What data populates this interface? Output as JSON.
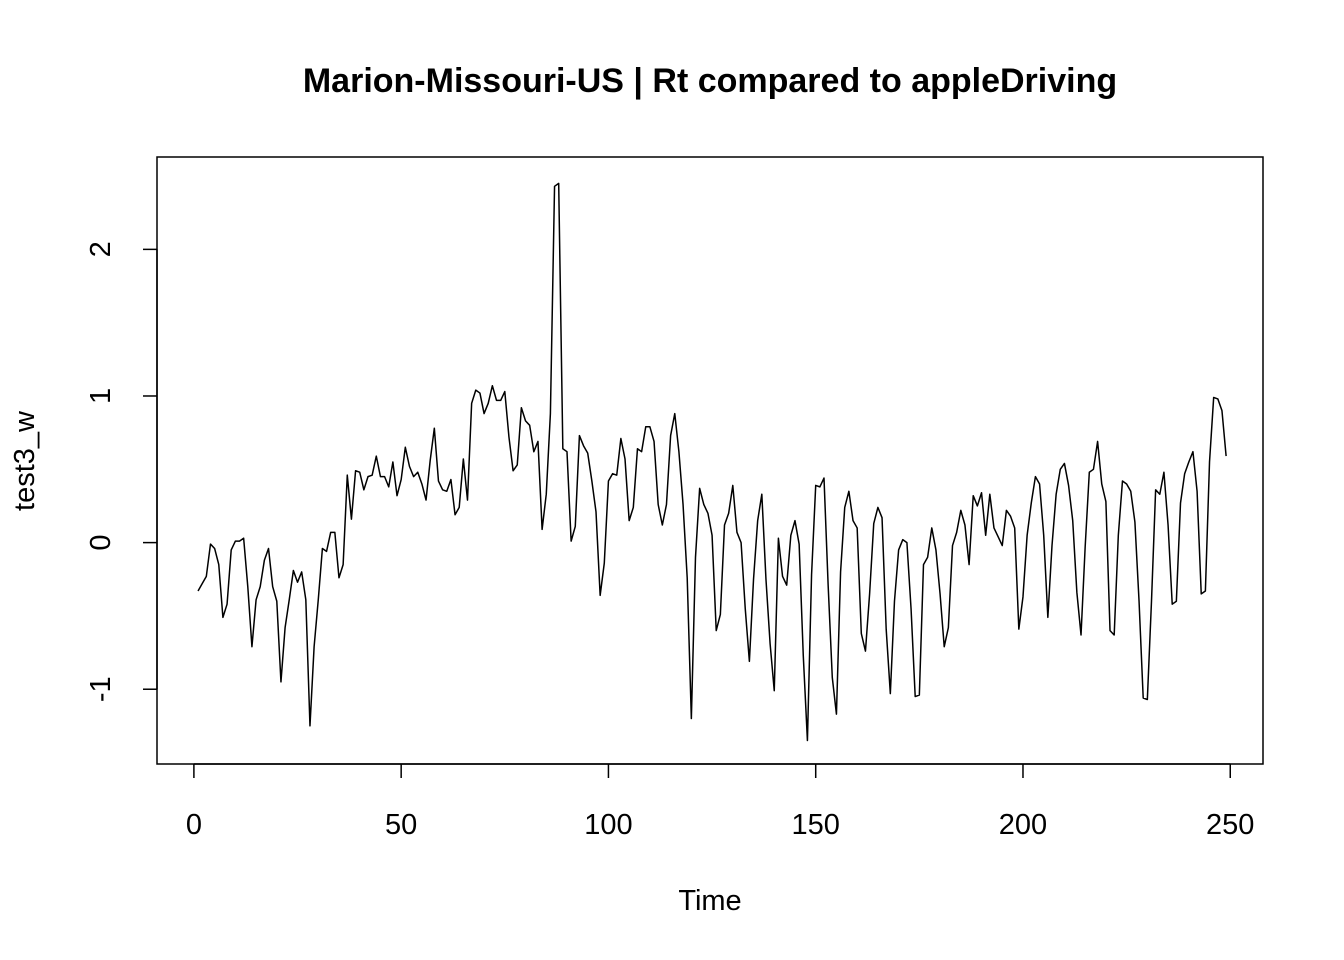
{
  "chart_data": {
    "type": "line",
    "title": "Marion-Missouri-US | Rt compared to appleDriving",
    "xlabel": "Time",
    "ylabel": "test3_w",
    "xlim": [
      -8.9,
      257.9
    ],
    "ylim": [
      -1.51,
      2.63
    ],
    "x_ticks": [
      0,
      50,
      100,
      150,
      200,
      250
    ],
    "x_tick_labels": [
      "0",
      "50",
      "100",
      "150",
      "200",
      "250"
    ],
    "y_ticks": [
      -1,
      0,
      1,
      2
    ],
    "y_tick_labels": [
      "-1",
      "0",
      "1",
      "2"
    ],
    "grid": false,
    "line_color": "#000000",
    "series": [
      {
        "x_start": 1,
        "x_step": 1,
        "values": [
          -0.33,
          -0.28,
          -0.23,
          -0.01,
          -0.04,
          -0.15,
          -0.51,
          -0.42,
          -0.05,
          0.01,
          0.01,
          0.03,
          -0.3,
          -0.71,
          -0.39,
          -0.3,
          -0.12,
          -0.04,
          -0.3,
          -0.4,
          -0.95,
          -0.58,
          -0.39,
          -0.19,
          -0.27,
          -0.2,
          -0.39,
          -1.25,
          -0.71,
          -0.39,
          -0.04,
          -0.06,
          0.07,
          0.07,
          -0.24,
          -0.15,
          0.46,
          0.16,
          0.49,
          0.48,
          0.36,
          0.45,
          0.46,
          0.59,
          0.45,
          0.45,
          0.38,
          0.55,
          0.32,
          0.43,
          0.65,
          0.52,
          0.45,
          0.48,
          0.4,
          0.29,
          0.56,
          0.78,
          0.42,
          0.36,
          0.35,
          0.43,
          0.19,
          0.24,
          0.57,
          0.29,
          0.95,
          1.04,
          1.02,
          0.88,
          0.95,
          1.07,
          0.97,
          0.97,
          1.03,
          0.72,
          0.49,
          0.53,
          0.92,
          0.83,
          0.8,
          0.62,
          0.69,
          0.09,
          0.33,
          0.88,
          2.43,
          2.45,
          0.64,
          0.62,
          0.01,
          0.11,
          0.73,
          0.66,
          0.61,
          0.42,
          0.21,
          -0.36,
          -0.14,
          0.42,
          0.47,
          0.46,
          0.71,
          0.57,
          0.15,
          0.24,
          0.64,
          0.62,
          0.79,
          0.79,
          0.69,
          0.26,
          0.12,
          0.26,
          0.73,
          0.88,
          0.62,
          0.26,
          -0.24,
          -1.2,
          -0.1,
          0.37,
          0.26,
          0.2,
          0.05,
          -0.6,
          -0.49,
          0.12,
          0.2,
          0.39,
          0.07,
          0.0,
          -0.45,
          -0.81,
          -0.25,
          0.15,
          0.33,
          -0.25,
          -0.69,
          -1.01,
          0.03,
          -0.23,
          -0.29,
          0.05,
          0.15,
          -0.01,
          -0.77,
          -1.35,
          -0.22,
          0.39,
          0.38,
          0.44,
          -0.29,
          -0.92,
          -1.17,
          -0.2,
          0.24,
          0.35,
          0.15,
          0.1,
          -0.62,
          -0.74,
          -0.35,
          0.13,
          0.24,
          0.17,
          -0.59,
          -1.03,
          -0.4,
          -0.05,
          0.02,
          0.0,
          -0.45,
          -1.05,
          -1.04,
          -0.15,
          -0.1,
          0.1,
          -0.05,
          -0.35,
          -0.71,
          -0.58,
          -0.02,
          0.07,
          0.22,
          0.12,
          -0.15,
          0.32,
          0.25,
          0.34,
          0.05,
          0.33,
          0.1,
          0.04,
          -0.02,
          0.22,
          0.18,
          0.1,
          -0.59,
          -0.37,
          0.05,
          0.27,
          0.45,
          0.4,
          0.05,
          -0.51,
          -0.02,
          0.33,
          0.5,
          0.54,
          0.39,
          0.15,
          -0.34,
          -0.63,
          -0.03,
          0.48,
          0.5,
          0.69,
          0.4,
          0.28,
          -0.6,
          -0.63,
          0.05,
          0.42,
          0.4,
          0.35,
          0.14,
          -0.4,
          -1.06,
          -1.07,
          -0.4,
          0.36,
          0.33,
          0.48,
          0.12,
          -0.42,
          -0.4,
          0.27,
          0.47,
          0.55,
          0.62,
          0.35,
          -0.35,
          -0.33,
          0.55,
          0.99,
          0.98,
          0.9,
          0.59
        ]
      }
    ]
  }
}
